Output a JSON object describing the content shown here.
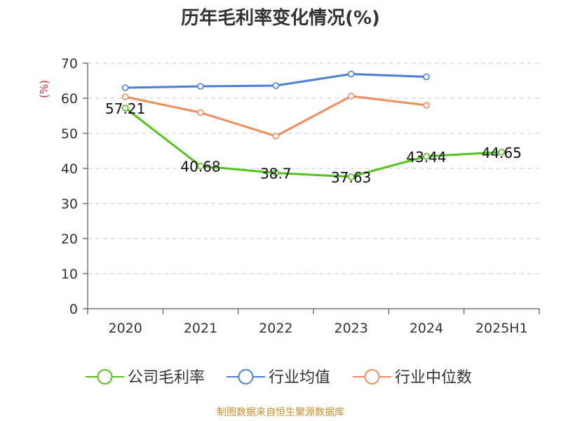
{
  "title": "历年毛利率变化情况(%)",
  "source": "制图数据来自恒生聚源数据库",
  "chart_data": {
    "type": "line",
    "title": "历年毛利率变化情况(%)",
    "ylabel": "(%)",
    "xlabel": "",
    "categories": [
      "2020",
      "2021",
      "2022",
      "2023",
      "2024",
      "2025H1"
    ],
    "yticks": [
      "0",
      "10",
      "20",
      "30",
      "40",
      "50",
      "60",
      "70"
    ],
    "ylim": [
      0,
      70
    ],
    "grid": true,
    "legend_position": "bottom",
    "series": [
      {
        "name": "公司毛利率",
        "color": "#52c41a",
        "values": [
          57.21,
          40.68,
          38.7,
          37.63,
          43.44,
          44.65
        ],
        "labels": [
          "57.21",
          "40.68",
          "38.7",
          "37.63",
          "43.44",
          "44.65"
        ]
      },
      {
        "name": "行业均值",
        "color": "#4a7fd6",
        "values": [
          63.0,
          63.4,
          63.6,
          66.9,
          66.1,
          null
        ]
      },
      {
        "name": "行业中位数",
        "color": "#f28c5a",
        "values": [
          60.4,
          55.9,
          49.2,
          60.6,
          58.0,
          null
        ]
      }
    ]
  }
}
